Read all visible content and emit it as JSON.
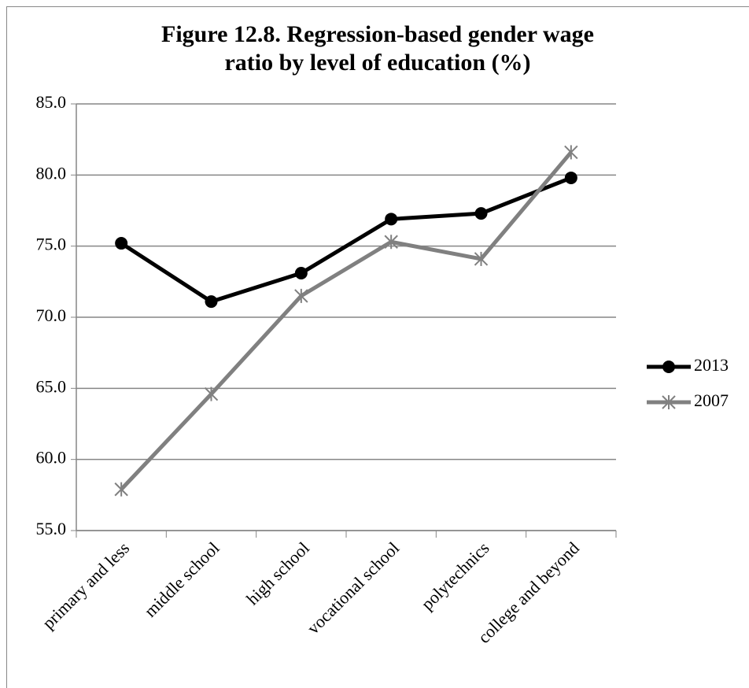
{
  "chart_data": {
    "type": "line",
    "title": "Figure 12.8. Regression-based gender wage ratio by level of education (%)",
    "categories": [
      "primary and less",
      "middle school",
      "high school",
      "vocational school",
      "polytechnics",
      "college and beyond"
    ],
    "series": [
      {
        "name": "2013",
        "color": "#000000",
        "marker": "circle",
        "values": [
          75.2,
          71.1,
          73.1,
          76.9,
          77.3,
          79.8
        ]
      },
      {
        "name": "2007",
        "color": "#808080",
        "marker": "star",
        "values": [
          57.9,
          64.6,
          71.5,
          75.3,
          74.1,
          81.6
        ]
      }
    ],
    "ylim": [
      55,
      85
    ],
    "yticks": [
      {
        "value": 55,
        "label": "55.0"
      },
      {
        "value": 60,
        "label": "60.0"
      },
      {
        "value": 65,
        "label": "65.0"
      },
      {
        "value": 70,
        "label": "70.0"
      },
      {
        "value": 75,
        "label": "75.0"
      },
      {
        "value": 80,
        "label": "80.0"
      },
      {
        "value": 85,
        "label": "85.0"
      }
    ],
    "grid": true,
    "legend": "right"
  }
}
